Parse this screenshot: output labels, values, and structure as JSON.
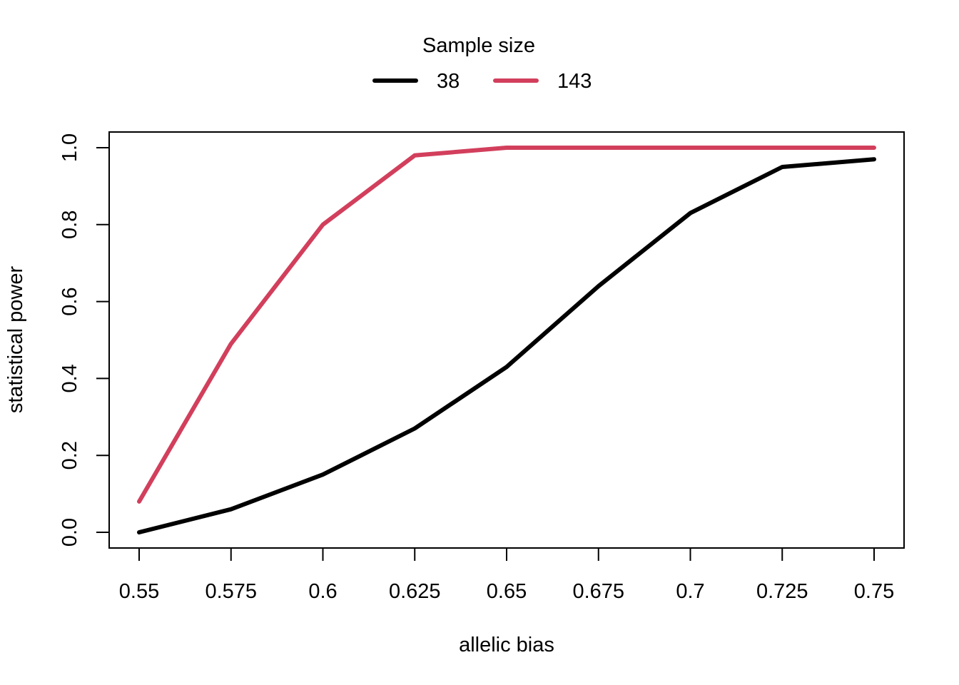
{
  "chart_data": {
    "type": "line",
    "title": "",
    "xlabel": "allelic bias",
    "ylabel": "statistical power",
    "x": [
      0.55,
      0.575,
      0.6,
      0.625,
      0.65,
      0.675,
      0.7,
      0.725,
      0.75
    ],
    "x_tick_labels": [
      "0.55",
      "0.575",
      "0.6",
      "0.625",
      "0.65",
      "0.675",
      "0.7",
      "0.725",
      "0.75"
    ],
    "y_ticks": [
      0.0,
      0.2,
      0.4,
      0.6,
      0.8,
      1.0
    ],
    "y_tick_labels": [
      "0.0",
      "0.2",
      "0.4",
      "0.6",
      "0.8",
      "1.0"
    ],
    "xlim": [
      0.55,
      0.75
    ],
    "ylim": [
      0.0,
      1.0
    ],
    "grid": false,
    "legend": {
      "title": "Sample size",
      "placement": "top-center, outside plot, horizontal"
    },
    "series": [
      {
        "name": "38",
        "color": "#000000",
        "values": [
          0.0,
          0.06,
          0.15,
          0.27,
          0.43,
          0.64,
          0.83,
          0.95,
          0.97
        ]
      },
      {
        "name": "143",
        "color": "#d23f5c",
        "values": [
          0.08,
          0.49,
          0.8,
          0.98,
          1.0,
          1.0,
          1.0,
          1.0,
          1.0
        ]
      }
    ]
  }
}
